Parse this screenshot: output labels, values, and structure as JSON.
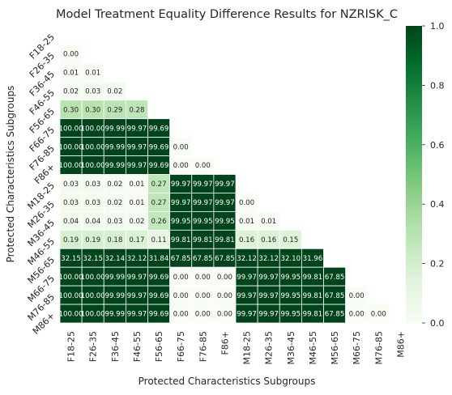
{
  "chart_data": {
    "type": "heatmap",
    "title": "Model Treatment Equality Difference Results for NZRISK_C",
    "xlabel": "Protected Characteristics Subgroups",
    "ylabel": "Protected Characteristics Subgroups",
    "categories": [
      "F18-25",
      "F26-35",
      "F36-45",
      "F46-55",
      "F56-65",
      "F66-75",
      "F76-85",
      "F86+",
      "M18-25",
      "M26-35",
      "M36-45",
      "M46-55",
      "M56-65",
      "M66-75",
      "M76-85",
      "M86+"
    ],
    "mask": "upper-triangle including diagonal",
    "color_scale": {
      "min": 0.0,
      "max": 1.0,
      "ticks": [
        0.0,
        0.2,
        0.4,
        0.6,
        0.8,
        1.0
      ],
      "tick_labels": [
        "0.0",
        "0.2",
        "0.4",
        "0.6",
        "0.8",
        "1.0"
      ],
      "low_color": "#f7fcf5",
      "high_color": "#00441b"
    },
    "cells": [
      {
        "row": "F26-35",
        "values": [
          0.0
        ],
        "labels": [
          "0.00"
        ]
      },
      {
        "row": "F36-45",
        "values": [
          0.01,
          0.01
        ],
        "labels": [
          "0.01",
          "0.01"
        ]
      },
      {
        "row": "F46-55",
        "values": [
          0.02,
          0.03,
          0.02
        ],
        "labels": [
          "0.02",
          "0.03",
          "0.02"
        ]
      },
      {
        "row": "F56-65",
        "values": [
          0.3,
          0.3,
          0.29,
          0.28
        ],
        "labels": [
          "0.30",
          "0.30",
          "0.29",
          "0.28"
        ]
      },
      {
        "row": "F66-75",
        "values": [
          100.0,
          100.0,
          99.99,
          99.97,
          99.69
        ],
        "labels": [
          "100.00",
          "100.00",
          "99.99",
          "99.97",
          "99.69"
        ]
      },
      {
        "row": "F76-85",
        "values": [
          100.0,
          100.0,
          99.99,
          99.97,
          99.69,
          0.0
        ],
        "labels": [
          "100.00",
          "100.00",
          "99.99",
          "99.97",
          "99.69",
          "0.00"
        ]
      },
      {
        "row": "F86+",
        "values": [
          100.0,
          100.0,
          99.99,
          99.97,
          99.69,
          0.0,
          0.0
        ],
        "labels": [
          "100.00",
          "100.00",
          "99.99",
          "99.97",
          "99.69",
          "0.00",
          "0.00"
        ]
      },
      {
        "row": "M18-25",
        "values": [
          0.03,
          0.03,
          0.02,
          0.01,
          0.27,
          99.97,
          99.97,
          99.97
        ],
        "labels": [
          "0.03",
          "0.03",
          "0.02",
          "0.01",
          "0.27",
          "99.97",
          "99.97",
          "99.97"
        ]
      },
      {
        "row": "M26-35",
        "values": [
          0.03,
          0.03,
          0.02,
          0.01,
          0.27,
          99.97,
          99.97,
          99.97,
          0.0
        ],
        "labels": [
          "0.03",
          "0.03",
          "0.02",
          "0.01",
          "0.27",
          "99.97",
          "99.97",
          "99.97",
          "0.00"
        ]
      },
      {
        "row": "M36-45",
        "values": [
          0.04,
          0.04,
          0.03,
          0.02,
          0.26,
          99.95,
          99.95,
          99.95,
          0.01,
          0.01
        ],
        "labels": [
          "0.04",
          "0.04",
          "0.03",
          "0.02",
          "0.26",
          "99.95",
          "99.95",
          "99.95",
          "0.01",
          "0.01"
        ]
      },
      {
        "row": "M46-55",
        "values": [
          0.19,
          0.19,
          0.18,
          0.17,
          0.11,
          99.81,
          99.81,
          99.81,
          0.16,
          0.16,
          0.15
        ],
        "labels": [
          "0.19",
          "0.19",
          "0.18",
          "0.17",
          "0.11",
          "99.81",
          "99.81",
          "99.81",
          "0.16",
          "0.16",
          "0.15"
        ]
      },
      {
        "row": "M56-65",
        "values": [
          32.15,
          32.15,
          32.14,
          32.12,
          31.84,
          67.85,
          67.85,
          67.85,
          32.12,
          32.12,
          32.1,
          31.96
        ],
        "labels": [
          "32.15",
          "32.15",
          "32.14",
          "32.12",
          "31.84",
          "67.85",
          "67.85",
          "67.85",
          "32.12",
          "32.12",
          "32.10",
          "31.96"
        ]
      },
      {
        "row": "M66-75",
        "values": [
          100.0,
          100.0,
          99.99,
          99.97,
          99.69,
          0.0,
          0.0,
          0.0,
          99.97,
          99.97,
          99.95,
          99.81,
          67.85
        ],
        "labels": [
          "100.00",
          "100.00",
          "99.99",
          "99.97",
          "99.69",
          "0.00",
          "0.00",
          "0.00",
          "99.97",
          "99.97",
          "99.95",
          "99.81",
          "67.85"
        ]
      },
      {
        "row": "M76-85",
        "values": [
          100.0,
          100.0,
          99.99,
          99.97,
          99.69,
          0.0,
          0.0,
          0.0,
          99.97,
          99.97,
          99.95,
          99.81,
          67.85,
          0.0
        ],
        "labels": [
          "100.00",
          "100.00",
          "99.99",
          "99.97",
          "99.69",
          "0.00",
          "0.00",
          "0.00",
          "99.97",
          "99.97",
          "99.95",
          "99.81",
          "67.85",
          "0.00"
        ]
      },
      {
        "row": "M86+",
        "values": [
          100.0,
          100.0,
          99.99,
          99.97,
          99.69,
          0.0,
          0.0,
          0.0,
          99.97,
          99.97,
          99.95,
          99.81,
          67.85,
          0.0,
          0.0
        ],
        "labels": [
          "100.00",
          "100.00",
          "99.99",
          "99.97",
          "99.69",
          "0.00",
          "0.00",
          "0.00",
          "99.97",
          "99.97",
          "99.95",
          "99.81",
          "67.85",
          "0.00",
          "0.00"
        ]
      }
    ]
  }
}
